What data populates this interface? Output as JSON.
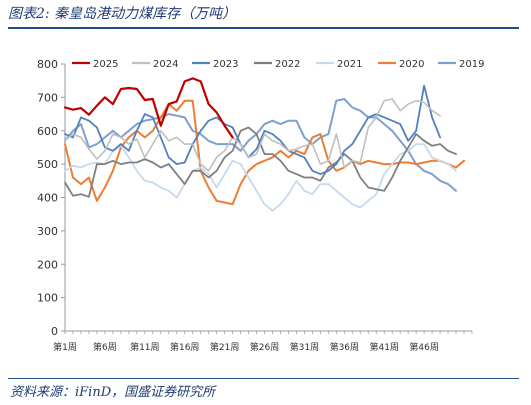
{
  "page": {
    "title": "图表2:  秦皇岛港动力煤库存（万吨）",
    "source": "资料来源：iFinD，国盛证券研究所"
  },
  "chart_data": {
    "type": "line",
    "title": "",
    "xlabel": "",
    "ylabel": "",
    "ylim": [
      0,
      800
    ],
    "yticks": [
      0,
      100,
      200,
      300,
      400,
      500,
      600,
      700,
      800
    ],
    "xlim": [
      1,
      52
    ],
    "xtick_weeks": [
      1,
      6,
      11,
      16,
      21,
      26,
      31,
      36,
      41,
      46
    ],
    "xtick_labels": [
      "第1周",
      "第6周",
      "第11周",
      "第16周",
      "第21周",
      "第26周",
      "第31周",
      "第36周",
      "第41周",
      "第46周"
    ],
    "grid": false,
    "legend_position": "top",
    "series": [
      {
        "name": "2025",
        "color": "#c00000",
        "width": 2.2,
        "values": [
          670,
          663,
          668,
          648,
          675,
          700,
          680,
          725,
          728,
          725,
          692,
          695,
          615,
          680,
          688,
          748,
          757,
          748,
          680,
          655,
          615,
          580
        ]
      },
      {
        "name": "2024",
        "color": "#bfbfbf",
        "width": 1.6,
        "values": [
          572,
          590,
          580,
          545,
          515,
          540,
          590,
          580,
          560,
          575,
          520,
          560,
          600,
          570,
          580,
          560,
          560,
          500,
          480,
          520,
          540,
          580,
          560,
          520,
          530,
          590,
          570,
          560,
          540,
          545,
          555,
          560,
          500,
          510,
          590,
          490,
          510,
          505,
          610,
          640,
          690,
          695,
          660,
          680,
          690,
          685,
          660,
          645
        ]
      },
      {
        "name": "2023",
        "color": "#4f81bd",
        "width": 1.8,
        "values": [
          590,
          580,
          640,
          630,
          610,
          550,
          540,
          560,
          540,
          600,
          650,
          640,
          580,
          520,
          500,
          505,
          560,
          600,
          630,
          640,
          620,
          610,
          560,
          520,
          545,
          600,
          590,
          570,
          540,
          530,
          520,
          480,
          470,
          480,
          500,
          540,
          560,
          600,
          640,
          650,
          640,
          630,
          620,
          570,
          600,
          735,
          640,
          580
        ]
      },
      {
        "name": "2022",
        "color": "#7f7f7f",
        "width": 1.8,
        "values": [
          445,
          405,
          410,
          402,
          500,
          500,
          510,
          500,
          505,
          505,
          515,
          505,
          490,
          500,
          470,
          440,
          480,
          480,
          460,
          480,
          520,
          540,
          600,
          610,
          590,
          530,
          530,
          510,
          480,
          470,
          460,
          460,
          450,
          490,
          505,
          530,
          510,
          460,
          430,
          425,
          420,
          460,
          510,
          550,
          590,
          570,
          555,
          560,
          540,
          530
        ]
      },
      {
        "name": "2021",
        "color": "#c5d9f1",
        "width": 1.8,
        "values": [
          480,
          495,
          490,
          500,
          505,
          500,
          540,
          555,
          520,
          480,
          450,
          445,
          430,
          420,
          400,
          440,
          480,
          490,
          470,
          430,
          470,
          510,
          500,
          460,
          420,
          380,
          360,
          380,
          410,
          450,
          420,
          410,
          440,
          440,
          420,
          400,
          380,
          370,
          390,
          410,
          470,
          500,
          530,
          540,
          560,
          560,
          520,
          510,
          500,
          480
        ]
      },
      {
        "name": "2020",
        "color": "#ed7d31",
        "width": 2.0,
        "values": [
          560,
          460,
          440,
          460,
          390,
          430,
          480,
          550,
          580,
          600,
          580,
          600,
          640,
          680,
          660,
          690,
          690,
          480,
          430,
          390,
          385,
          380,
          440,
          480,
          500,
          510,
          520,
          540,
          520,
          540,
          530,
          580,
          590,
          510,
          480,
          490,
          510,
          500,
          510,
          505,
          500,
          500,
          505,
          505,
          500,
          505,
          510,
          510,
          500,
          490,
          510
        ]
      },
      {
        "name": "2019",
        "color": "#7f9fcf",
        "width": 2.0,
        "values": [
          570,
          600,
          620,
          550,
          560,
          580,
          600,
          580,
          600,
          620,
          630,
          635,
          640,
          650,
          645,
          640,
          600,
          590,
          570,
          560,
          560,
          560,
          540,
          570,
          590,
          620,
          630,
          620,
          630,
          630,
          580,
          560,
          580,
          590,
          690,
          695,
          670,
          660,
          640,
          640,
          620,
          600,
          570,
          540,
          500,
          480,
          470,
          450,
          440,
          420
        ]
      }
    ]
  }
}
